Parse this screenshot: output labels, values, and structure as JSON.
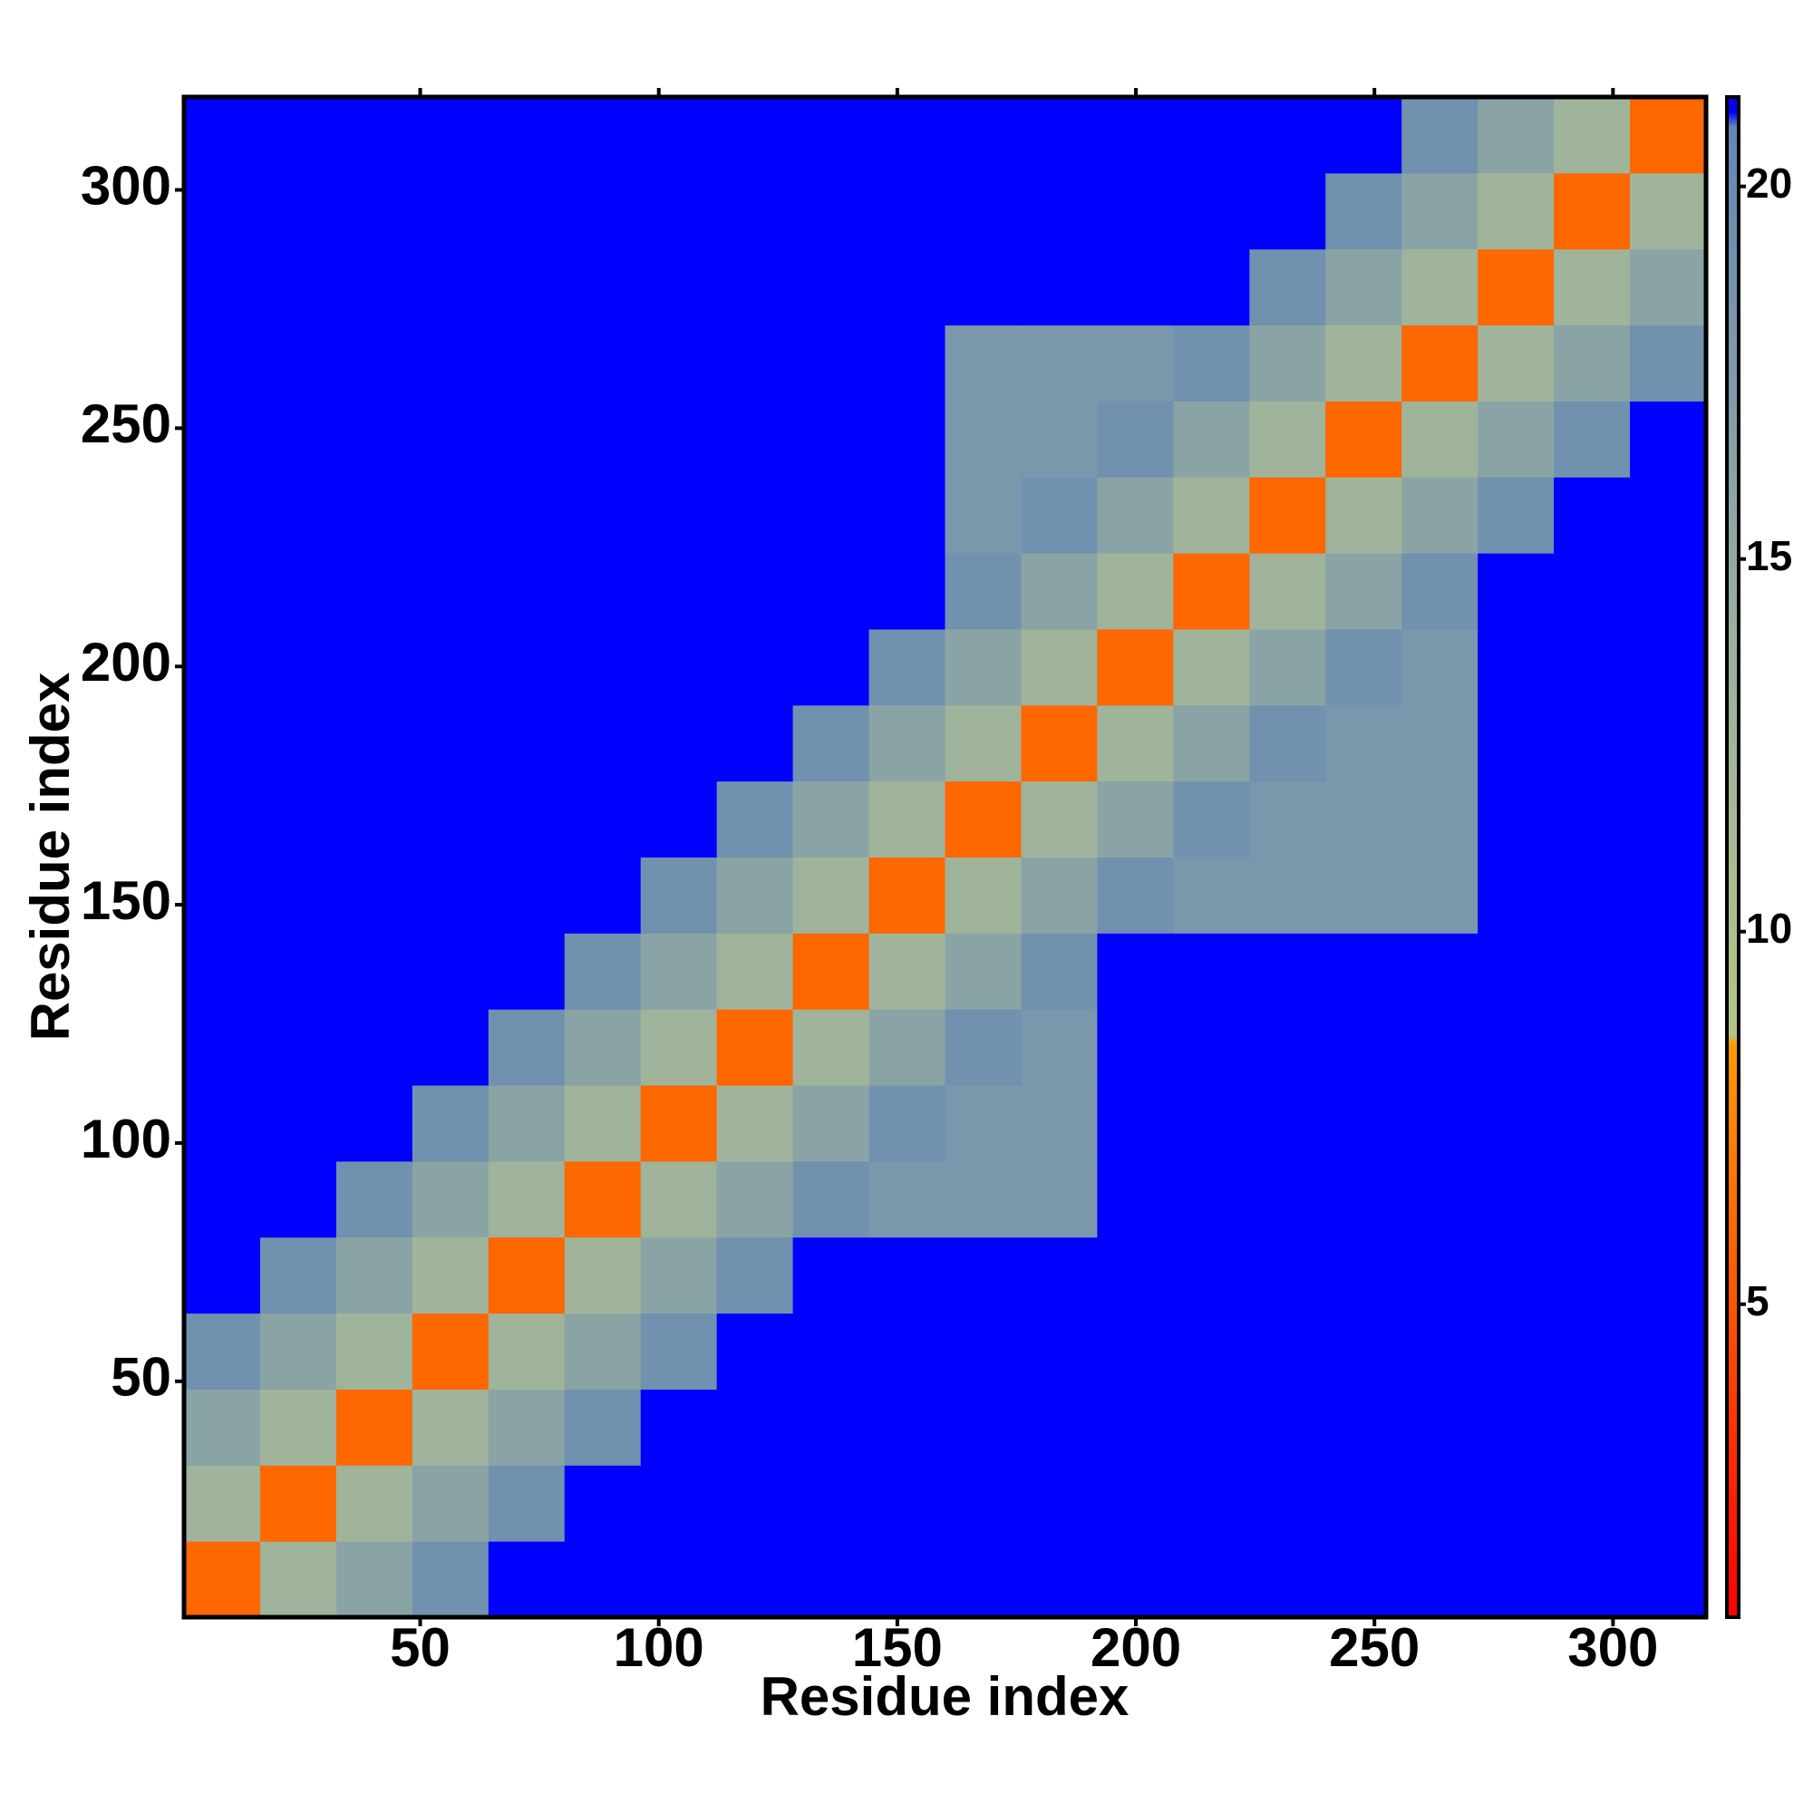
{
  "chart_data": {
    "type": "heatmap",
    "x_label": "Residue index",
    "y_label": "Residue index",
    "xlim": [
      0.5,
      319.5
    ],
    "ylim": [
      0.5,
      319.5
    ],
    "xticks": [
      50,
      100,
      150,
      200,
      250,
      300
    ],
    "yticks": [
      50,
      100,
      150,
      200,
      250,
      300
    ],
    "zlim": [
      0.8,
      21.2
    ],
    "zticks": [
      5,
      10,
      15,
      20
    ],
    "colorscale": [
      [
        0.8,
        "#ff0000"
      ],
      [
        8.5,
        "#ff9900"
      ],
      [
        8.6,
        "#b4c486"
      ],
      [
        14,
        "#9ab0a0"
      ],
      [
        20.8,
        "#6486b4"
      ],
      [
        21,
        "#0000ff"
      ]
    ],
    "z": [
      [
        6,
        13,
        16,
        19,
        21,
        21,
        21,
        21,
        21,
        21,
        21,
        21,
        21,
        21,
        21,
        21,
        21,
        21,
        21,
        21
      ],
      [
        13,
        6,
        13,
        16,
        19,
        21,
        21,
        21,
        21,
        21,
        21,
        21,
        21,
        21,
        21,
        21,
        21,
        21,
        21,
        21
      ],
      [
        16,
        13,
        6,
        13,
        16,
        19,
        21,
        21,
        21,
        21,
        21,
        21,
        21,
        21,
        21,
        21,
        21,
        21,
        21,
        21
      ],
      [
        19,
        16,
        13,
        6,
        13,
        16,
        19,
        21,
        21,
        21,
        21,
        21,
        21,
        21,
        21,
        21,
        21,
        21,
        21,
        21
      ],
      [
        21,
        19,
        16,
        13,
        6,
        13,
        16,
        19,
        21,
        21,
        21,
        21,
        21,
        21,
        21,
        21,
        21,
        21,
        21,
        21
      ],
      [
        21,
        21,
        19,
        16,
        13,
        6,
        13,
        16,
        19,
        18,
        18,
        18,
        21,
        21,
        21,
        21,
        21,
        21,
        21,
        21
      ],
      [
        21,
        21,
        21,
        19,
        16,
        13,
        6,
        13,
        16,
        19,
        18,
        18,
        21,
        21,
        21,
        21,
        21,
        21,
        21,
        21
      ],
      [
        21,
        21,
        21,
        21,
        19,
        16,
        13,
        6,
        13,
        16,
        19,
        18,
        21,
        21,
        21,
        21,
        21,
        21,
        21,
        21
      ],
      [
        21,
        21,
        21,
        21,
        21,
        19,
        16,
        13,
        6,
        13,
        16,
        19,
        21,
        21,
        21,
        21,
        21,
        21,
        21,
        21
      ],
      [
        21,
        21,
        21,
        21,
        21,
        21,
        19,
        16,
        13,
        6,
        13,
        16,
        19,
        18,
        18,
        18,
        18,
        21,
        21,
        21
      ],
      [
        21,
        21,
        21,
        21,
        21,
        21,
        21,
        19,
        16,
        13,
        6,
        13,
        16,
        19,
        18,
        18,
        18,
        21,
        21,
        21
      ],
      [
        21,
        21,
        21,
        21,
        21,
        21,
        21,
        21,
        19,
        16,
        13,
        6,
        13,
        16,
        19,
        18,
        18,
        21,
        21,
        21
      ],
      [
        21,
        21,
        21,
        21,
        21,
        21,
        21,
        21,
        21,
        19,
        16,
        13,
        6,
        13,
        16,
        19,
        18,
        21,
        21,
        21
      ],
      [
        21,
        21,
        21,
        21,
        21,
        21,
        21,
        21,
        21,
        21,
        19,
        16,
        13,
        6,
        13,
        16,
        19,
        21,
        21,
        21
      ],
      [
        21,
        21,
        21,
        21,
        21,
        21,
        21,
        21,
        21,
        21,
        18,
        19,
        16,
        13,
        6,
        13,
        16,
        19,
        21,
        21
      ],
      [
        21,
        21,
        21,
        21,
        21,
        21,
        21,
        21,
        21,
        21,
        18,
        18,
        19,
        16,
        13,
        6,
        13,
        16,
        19,
        21
      ],
      [
        21,
        21,
        21,
        21,
        21,
        21,
        21,
        21,
        21,
        21,
        18,
        18,
        18,
        19,
        16,
        13,
        6,
        13,
        16,
        19
      ],
      [
        21,
        21,
        21,
        21,
        21,
        21,
        21,
        21,
        21,
        21,
        21,
        21,
        21,
        21,
        19,
        16,
        13,
        6,
        13,
        16
      ],
      [
        21,
        21,
        21,
        21,
        21,
        21,
        21,
        21,
        21,
        21,
        21,
        21,
        21,
        21,
        21,
        19,
        16,
        13,
        6,
        13
      ],
      [
        21,
        21,
        21,
        21,
        21,
        21,
        21,
        21,
        21,
        21,
        21,
        21,
        21,
        21,
        21,
        21,
        19,
        16,
        13,
        6
      ]
    ]
  }
}
